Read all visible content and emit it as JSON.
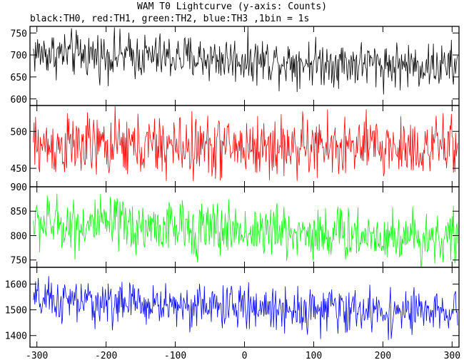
{
  "title": "WAM T0 Lightcurve (y-axis: Counts)",
  "subtitle": "black:TH0, red:TH1, green:TH2, blue:TH3 ,1bin = 1s",
  "chart_data": {
    "type": "line",
    "x_axis": {
      "range": [
        -310,
        310
      ],
      "ticks": [
        -300,
        -200,
        -100,
        0,
        100,
        200,
        300
      ]
    },
    "bin_seconds": 1,
    "panels": [
      {
        "name": "TH0",
        "color": "#000000",
        "ylim": [
          585,
          765
        ],
        "yticks": [
          600,
          650,
          700,
          750
        ],
        "mean_start": 705,
        "mean_end": 673,
        "noise_amplitude": 26
      },
      {
        "name": "TH1",
        "color": "#ff0000",
        "ylim": [
          425,
          535
        ],
        "yticks": [
          450,
          500
        ],
        "mean_start": 480,
        "mean_end": 478,
        "noise_amplitude": 21
      },
      {
        "name": "TH2",
        "color": "#00ff00",
        "ylim": [
          735,
          900
        ],
        "yticks": [
          750,
          800,
          850,
          900
        ],
        "mean_start": 826,
        "mean_end": 795,
        "noise_amplitude": 28
      },
      {
        "name": "TH3",
        "color": "#0000ff",
        "ylim": [
          1355,
          1665
        ],
        "yticks": [
          1400,
          1500,
          1600
        ],
        "mean_start": 1535,
        "mean_end": 1485,
        "noise_amplitude": 42
      }
    ]
  }
}
